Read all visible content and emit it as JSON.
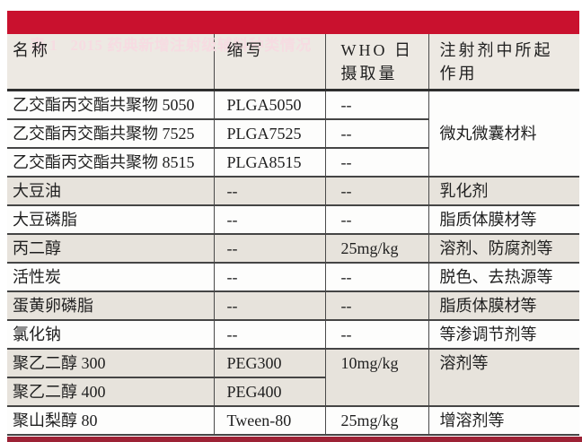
{
  "title": "表 1   2015 药典新增注射级辅料种类情况",
  "colors": {
    "title_bar": "#C9112E",
    "title_text": "#F6DCE2",
    "row_shade": "#E7E3DC",
    "header_bg": "#EDE9E3",
    "bottom_rule": "#9D2235",
    "grid_line": "#454545"
  },
  "table": {
    "headers": [
      {
        "line1": "名称",
        "line2": ""
      },
      {
        "line1": "缩写",
        "line2": ""
      },
      {
        "line1": "WHO 日",
        "line2": "摄取量"
      },
      {
        "line1": "注射剂中所起",
        "line2": "作用"
      }
    ],
    "rows": [
      {
        "name": "乙交酯丙交酯共聚物 5050",
        "abbr": "PLGA5050",
        "who": "--",
        "role": "微丸微囊材料"
      },
      {
        "name": "乙交酯丙交酯共聚物 7525",
        "abbr": "PLGA7525",
        "who": "--"
      },
      {
        "name": "乙交酯丙交酯共聚物 8515",
        "abbr": "PLGA8515",
        "who": "--"
      },
      {
        "name": "大豆油",
        "abbr": "--",
        "who": "--",
        "role": "乳化剂"
      },
      {
        "name": "大豆磷脂",
        "abbr": "--",
        "who": "--",
        "role": "脂质体膜材等"
      },
      {
        "name": "丙二醇",
        "abbr": "--",
        "who": "25mg/kg",
        "role": "溶剂、防腐剂等"
      },
      {
        "name": "活性炭",
        "abbr": "--",
        "who": "--",
        "role": "脱色、去热源等"
      },
      {
        "name": "蛋黄卵磷脂",
        "abbr": "--",
        "who": "--",
        "role": "脂质体膜材等"
      },
      {
        "name": "氯化钠",
        "abbr": "--",
        "who": "--",
        "role": "等渗调节剂等"
      },
      {
        "name": "聚乙二醇 300",
        "abbr": "PEG300",
        "who": "10mg/kg",
        "role": "溶剂等"
      },
      {
        "name": "聚乙二醇 400",
        "abbr": "PEG400"
      },
      {
        "name": "聚山梨醇 80",
        "abbr": "Tween-80",
        "who": "25mg/kg",
        "role": "增溶剂等"
      }
    ]
  }
}
